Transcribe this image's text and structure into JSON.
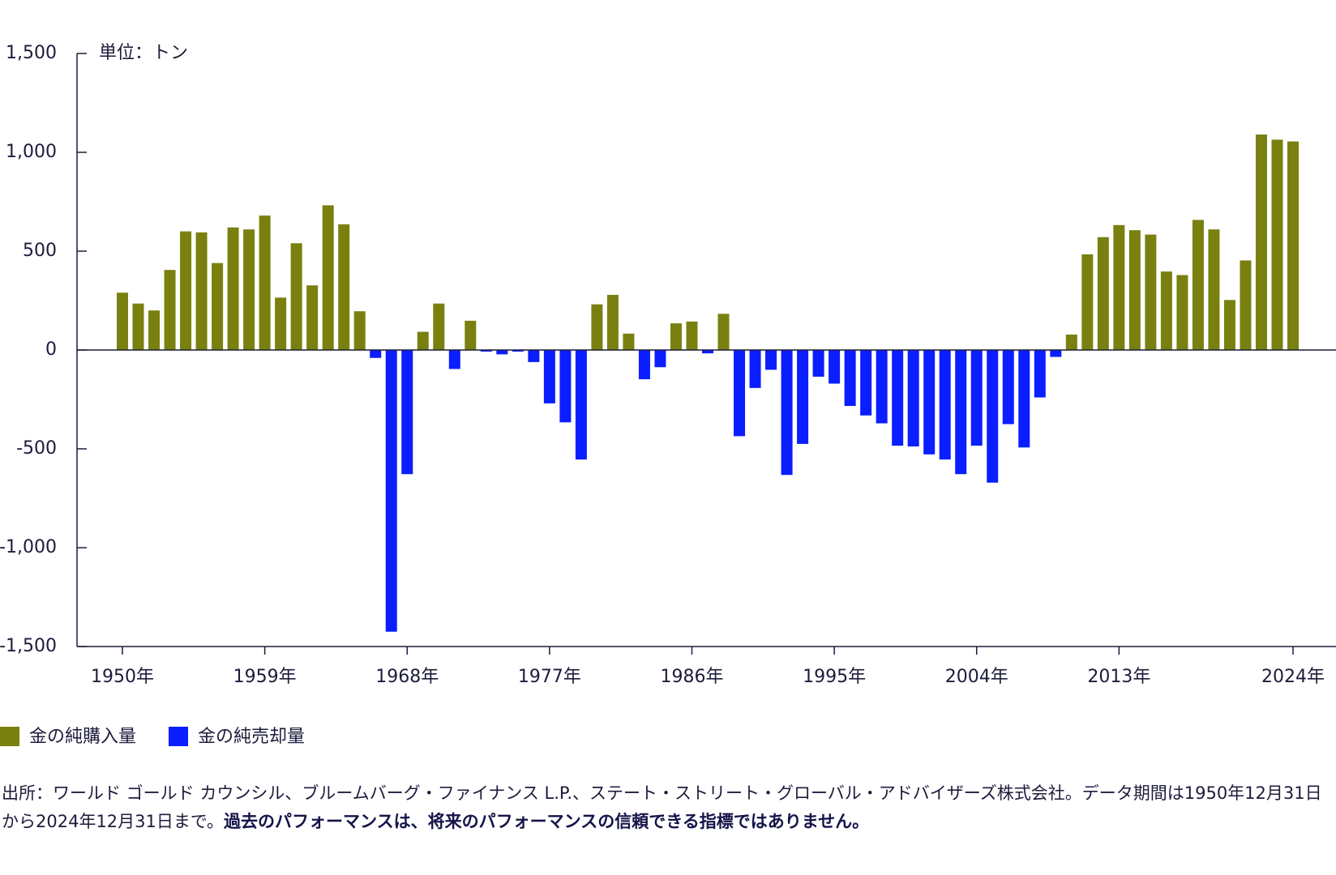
{
  "chart_data": {
    "type": "bar",
    "y_axis_label": "単位：トン",
    "categories": [
      "1950年",
      null,
      null,
      null,
      null,
      null,
      null,
      null,
      null,
      "1959年",
      null,
      null,
      null,
      null,
      null,
      null,
      null,
      null,
      "1968年",
      null,
      null,
      null,
      null,
      null,
      null,
      null,
      null,
      "1977年",
      null,
      null,
      null,
      null,
      null,
      null,
      null,
      null,
      "1986年",
      null,
      null,
      null,
      null,
      null,
      null,
      null,
      null,
      "1995年",
      null,
      null,
      null,
      null,
      null,
      null,
      null,
      null,
      "2004年",
      null,
      null,
      null,
      null,
      null,
      null,
      null,
      null,
      "2013年",
      null,
      null,
      null,
      null,
      null,
      null,
      null,
      null,
      null,
      null,
      "2024年"
    ],
    "series": [
      {
        "name": "金の純購入量",
        "color": "#7a8010",
        "values": [
          290,
          235,
          200,
          405,
          600,
          595,
          440,
          620,
          610,
          680,
          265,
          540,
          327,
          732,
          636,
          196,
          null,
          null,
          null,
          92,
          235,
          null,
          148,
          null,
          null,
          null,
          null,
          null,
          null,
          null,
          231,
          279,
          83,
          null,
          null,
          135,
          144,
          null,
          183,
          null,
          null,
          null,
          null,
          null,
          null,
          null,
          null,
          null,
          null,
          null,
          null,
          null,
          null,
          null,
          null,
          null,
          null,
          null,
          null,
          null,
          78,
          484,
          571,
          632,
          606,
          584,
          397,
          379,
          658,
          610,
          253,
          453,
          1090,
          1064,
          1055
        ]
      },
      {
        "name": "金の純売却量",
        "color": "#0a1eff",
        "values": [
          null,
          null,
          null,
          null,
          null,
          null,
          null,
          null,
          null,
          null,
          null,
          null,
          null,
          null,
          null,
          null,
          -40,
          -1425,
          -628,
          null,
          null,
          -96,
          null,
          -8,
          -22,
          -8,
          -61,
          -270,
          -366,
          -554,
          null,
          null,
          null,
          -148,
          -87,
          null,
          null,
          -17,
          null,
          -436,
          -192,
          -100,
          -632,
          -475,
          -135,
          -170,
          -283,
          -331,
          -371,
          -484,
          -488,
          -528,
          -554,
          -628,
          -484,
          -671,
          -375,
          -493,
          -240,
          -35,
          null,
          null,
          null,
          null,
          null,
          null,
          null,
          null,
          null,
          null,
          null,
          null,
          null,
          null,
          null
        ]
      }
    ],
    "ylim": [
      -1500,
      1500
    ],
    "yticks": [
      {
        "value": 1500,
        "label": "1,500"
      },
      {
        "value": 1000,
        "label": "1,000"
      },
      500,
      0,
      -500,
      {
        "value": -1000,
        "label": "-1,000"
      },
      {
        "value": -1500,
        "label": "-1,500"
      }
    ],
    "legend": "bottom-left"
  },
  "footnote": {
    "source": "出所：ワールド ゴールド カウンシル、ブルームバーグ・ファイナンス L.P.、ステート・ストリート・グローバル・アドバイザーズ株式会社。データ期間は1950年12月31日から2024年12月31日まで。",
    "disclaimer": "過去のパフォーマンスは、将来のパフォーマンスの信頼できる指標ではありません。"
  }
}
